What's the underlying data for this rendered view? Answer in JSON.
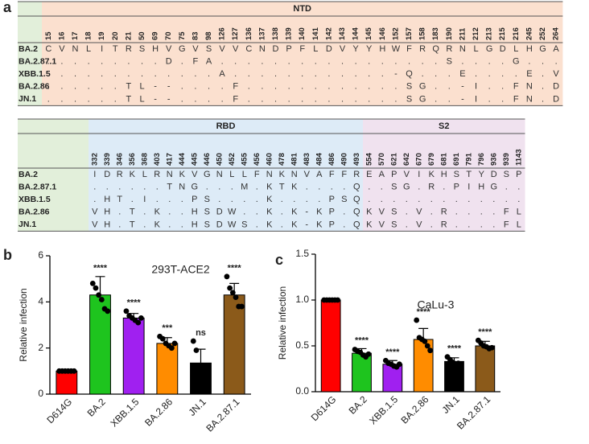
{
  "panel_labels": [
    "a",
    "b",
    "c"
  ],
  "tables": [
    {
      "regions": [
        {
          "name": "NTD",
          "positions": [
            15,
            16,
            17,
            18,
            19,
            20,
            21,
            50,
            69,
            70,
            75,
            83,
            98,
            126,
            127,
            136,
            137,
            138,
            139,
            140,
            141,
            142,
            143,
            144,
            145,
            146,
            152,
            157,
            158,
            183,
            190,
            211,
            212,
            213,
            215,
            216,
            245,
            252,
            264
          ]
        }
      ],
      "rows": [
        {
          "name": "BA.2",
          "cells": [
            "C",
            "V",
            "N",
            "L",
            "I",
            "T",
            "R",
            "S",
            "H",
            "V",
            "G",
            "V",
            "S",
            "V",
            "V",
            "C",
            "N",
            "D",
            "P",
            "F",
            "L",
            "D",
            "V",
            "Y",
            "Y",
            "H",
            "W",
            "F",
            "R",
            "Q",
            "R",
            "N",
            "L",
            "G",
            "D",
            "L",
            "H",
            "G",
            "A"
          ]
        },
        {
          "name": "BA.2.87.1",
          "cells": [
            ".",
            ".",
            ".",
            ".",
            ".",
            ".",
            ".",
            ".",
            ".",
            "D",
            ".",
            "F",
            "A",
            ".",
            ".",
            ".",
            ".",
            ".",
            ".",
            ".",
            ".",
            ".",
            ".",
            ".",
            ".",
            ".",
            ".",
            ".",
            ".",
            ".",
            "S",
            ".",
            ".",
            ".",
            ".",
            "G",
            ".",
            ".",
            "."
          ]
        },
        {
          "name": "XBB.1.5",
          "cells": [
            ".",
            ".",
            ".",
            ".",
            ".",
            ".",
            ".",
            ".",
            ".",
            ".",
            ".",
            ".",
            ".",
            "A",
            ".",
            ".",
            ".",
            ".",
            ".",
            ".",
            ".",
            ".",
            ".",
            ".",
            ".",
            ".",
            "-",
            "Q",
            ".",
            ".",
            ".",
            "E",
            ".",
            ".",
            ".",
            ".",
            "E",
            ".",
            "V"
          ]
        },
        {
          "name": "BA.2.86",
          "cells": [
            ".",
            ".",
            ".",
            ".",
            ".",
            ".",
            "T",
            "L",
            "-",
            "-",
            ".",
            ".",
            ".",
            ".",
            "F",
            ".",
            ".",
            ".",
            ".",
            ".",
            ".",
            ".",
            ".",
            ".",
            ".",
            ".",
            ".",
            "S",
            "G",
            ".",
            ".",
            "-",
            "I",
            ".",
            ".",
            "F",
            "N",
            ".",
            "D"
          ]
        },
        {
          "name": "JN.1",
          "cells": [
            ".",
            ".",
            ".",
            ".",
            ".",
            ".",
            "T",
            "L",
            "-",
            "-",
            ".",
            ".",
            ".",
            ".",
            "F",
            ".",
            ".",
            ".",
            ".",
            ".",
            ".",
            ".",
            ".",
            ".",
            ".",
            ".",
            ".",
            "S",
            "G",
            ".",
            ".",
            "-",
            "I",
            ".",
            ".",
            "F",
            "N",
            ".",
            "D"
          ]
        }
      ]
    },
    {
      "regions": [
        {
          "name": "RBD",
          "positions": [
            332,
            339,
            346,
            356,
            368,
            403,
            417,
            444,
            445,
            446,
            450,
            452,
            455,
            456,
            460,
            478,
            481,
            483,
            484,
            486,
            490,
            493
          ]
        },
        {
          "name": "S2",
          "positions": [
            554,
            570,
            621,
            642,
            670,
            679,
            681,
            691,
            791,
            796,
            936,
            939,
            1143
          ]
        }
      ],
      "rows": [
        {
          "name": "BA.2",
          "cells": [
            "I",
            "D",
            "R",
            "K",
            "L",
            "R",
            "N",
            "K",
            "V",
            "G",
            "N",
            "L",
            "L",
            "F",
            "N",
            "K",
            "N",
            "V",
            "A",
            "F",
            "F",
            "R",
            "E",
            "A",
            "P",
            "V",
            "I",
            "K",
            "H",
            "S",
            "T",
            "Y",
            "D",
            "S",
            "P"
          ]
        },
        {
          "name": "BA.2.87.1",
          "cells": [
            ".",
            ".",
            ".",
            ".",
            ".",
            ".",
            "T",
            "N",
            "G",
            ".",
            ".",
            ".",
            "M",
            ".",
            "K",
            "T",
            "K",
            ".",
            ".",
            ".",
            ".",
            "Q",
            ".",
            ".",
            "S",
            "G",
            ".",
            "R",
            ".",
            "P",
            "I",
            "H",
            "G",
            ".",
            "."
          ]
        },
        {
          "name": "XBB.1.5",
          "cells": [
            ".",
            "H",
            "T",
            ".",
            "I",
            ".",
            ".",
            ".",
            "P",
            "S",
            ".",
            ".",
            ".",
            ".",
            "K",
            ".",
            ".",
            ".",
            ".",
            "P",
            "S",
            "Q",
            ".",
            ".",
            ".",
            ".",
            ".",
            ".",
            ".",
            ".",
            ".",
            ".",
            ".",
            ".",
            "."
          ]
        },
        {
          "name": "BA.2.86",
          "cells": [
            "V",
            "H",
            ".",
            "T",
            ".",
            "K",
            ".",
            ".",
            "H",
            "S",
            "D",
            "W",
            ".",
            ".",
            "K",
            ".",
            "K",
            "-",
            "K",
            "P",
            ".",
            "Q",
            "K",
            "V",
            "S",
            ".",
            "V",
            ".",
            "R",
            ".",
            ".",
            ".",
            ".",
            "F",
            "L"
          ]
        },
        {
          "name": "JN.1",
          "cells": [
            "V",
            "H",
            ".",
            "T",
            ".",
            "K",
            ".",
            ".",
            "H",
            "S",
            "D",
            "W",
            "S",
            ".",
            "K",
            ".",
            "K",
            "-",
            "K",
            "P",
            ".",
            "Q",
            "K",
            "V",
            "S",
            ".",
            "V",
            ".",
            "R",
            ".",
            ".",
            ".",
            ".",
            "F",
            "L"
          ]
        }
      ]
    }
  ],
  "chart_data": [
    {
      "type": "bar",
      "title": "293T-ACE2",
      "y_label": "Relative infection",
      "categories": [
        "D614G",
        "BA.2",
        "XBB.1.5",
        "BA.2.86",
        "JN.1",
        "BA.2.87.1"
      ],
      "values": [
        1,
        4.3,
        3.3,
        2.2,
        1.35,
        4.3
      ],
      "errors": [
        0,
        0.8,
        0.2,
        0.25,
        0.6,
        0.5
      ],
      "points": [
        [
          1,
          1,
          1,
          1,
          1,
          1
        ],
        [
          4.8,
          4.6,
          4.3,
          4.1,
          3.7,
          3.6
        ],
        [
          3.6,
          3.4,
          3.3,
          3.2,
          3.1,
          3.3
        ],
        [
          2.5,
          2.4,
          2.2,
          2.1,
          2.0,
          2.2
        ],
        [
          2.3,
          1.9,
          1.0,
          1.0,
          1.0,
          0.9
        ],
        [
          5.1,
          4.6,
          4.4,
          4.2,
          3.8,
          3.8
        ]
      ],
      "annotations": [
        null,
        "****",
        "****",
        "***",
        "ns",
        "****"
      ],
      "colors": [
        "#ff0000",
        "#1ec41e",
        "#a020f0",
        "#ff8c00",
        "#000000",
        "#8b5a1a"
      ],
      "ylim": [
        0,
        6
      ],
      "yticks": [
        0,
        2,
        4,
        6
      ]
    },
    {
      "type": "bar",
      "title": "CaLu-3",
      "y_label": "Relative infection",
      "categories": [
        "D614G",
        "BA.2",
        "XBB.1.5",
        "BA.2.86",
        "JN.1",
        "BA.2.87.1"
      ],
      "values": [
        1.0,
        0.42,
        0.3,
        0.57,
        0.33,
        0.5
      ],
      "errors": [
        0,
        0.05,
        0.04,
        0.12,
        0.04,
        0.05
      ],
      "points": [
        [
          1,
          1,
          1,
          1,
          1,
          1
        ],
        [
          0.46,
          0.44,
          0.43,
          0.4,
          0.38,
          0.41
        ],
        [
          0.34,
          0.31,
          0.3,
          0.28,
          0.27,
          0.3
        ],
        [
          0.78,
          0.59,
          0.57,
          0.55,
          0.5,
          0.45
        ],
        [
          0.38,
          0.35,
          0.32,
          0.3,
          0.31,
          0.3
        ],
        [
          0.56,
          0.53,
          0.5,
          0.49,
          0.47,
          0.48
        ]
      ],
      "annotations": [
        null,
        "****",
        "****",
        "****",
        "****",
        "****"
      ],
      "colors": [
        "#ff0000",
        "#1ec41e",
        "#a020f0",
        "#ff8c00",
        "#000000",
        "#8b5a1a"
      ],
      "ylim": [
        0,
        1.5
      ],
      "yticks": [
        {
          "value": 0,
          "label": "0.0"
        },
        0.5,
        {
          "value": 1,
          "label": "1.0"
        },
        1.5
      ]
    }
  ]
}
